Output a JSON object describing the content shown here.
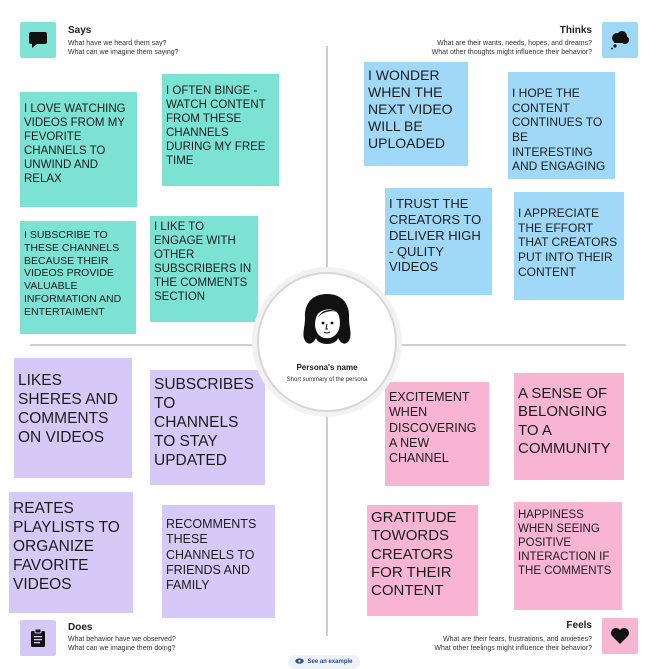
{
  "quadrants": {
    "says": {
      "title": "Says",
      "q1": "What have we heard them say?",
      "q2": "What can we imagine them saying?",
      "icon": "speech-bubble-icon"
    },
    "thinks": {
      "title": "Thinks",
      "q1": "What are their wants, needs, hopes, and dreams?",
      "q2": "What other thoughts might influence their behavior?",
      "icon": "thought-cloud-icon"
    },
    "does": {
      "title": "Does",
      "q1": "What behavior have we observed?",
      "q2": "What can we imagine them doing?",
      "icon": "clipboard-icon"
    },
    "feels": {
      "title": "Feels",
      "q1": "What are their fears, frustrations, and anxieties?",
      "q2": "What other feelings might influence their behavior?",
      "icon": "heart-icon"
    }
  },
  "notes": {
    "says": [
      "I love watching videos from my fevorite channels to unwind and relax",
      "I often binge - watch content from these channels during my free time",
      "I subscribe to these channels because their videos provide valuable information and entertaiment",
      "I like to engage with other  subscribers in the comments section"
    ],
    "thinks": [
      "I wonder when the next video will be uploaded",
      "I hope the content continues to be interesting and engaging",
      "I trust the creators to deliver high - qulity  videos",
      "I appreciate the effort that creators put into their content"
    ],
    "does": [
      "likes sheres and comments on videos",
      "Subscribes to channels to stay updated",
      "reates playlists to organize favorite videos",
      "recomments these channels to friends and family"
    ],
    "feels": [
      "Excitement when discovering a new channel",
      "a sense of belonging to a community",
      "gratitude towords creators for their content",
      "happiness when seeing positive interaction if the comments"
    ]
  },
  "persona": {
    "name": "Persona's name",
    "summary": "Short summary of the persona",
    "icon": "persona-avatar-icon"
  },
  "footer": {
    "example_label": "See an example",
    "icon": "eye-icon"
  },
  "colors": {
    "says": "#7ce2d4",
    "thinks": "#a0d8f8",
    "does": "#d6c9f8",
    "feels": "#f8b5d3"
  }
}
